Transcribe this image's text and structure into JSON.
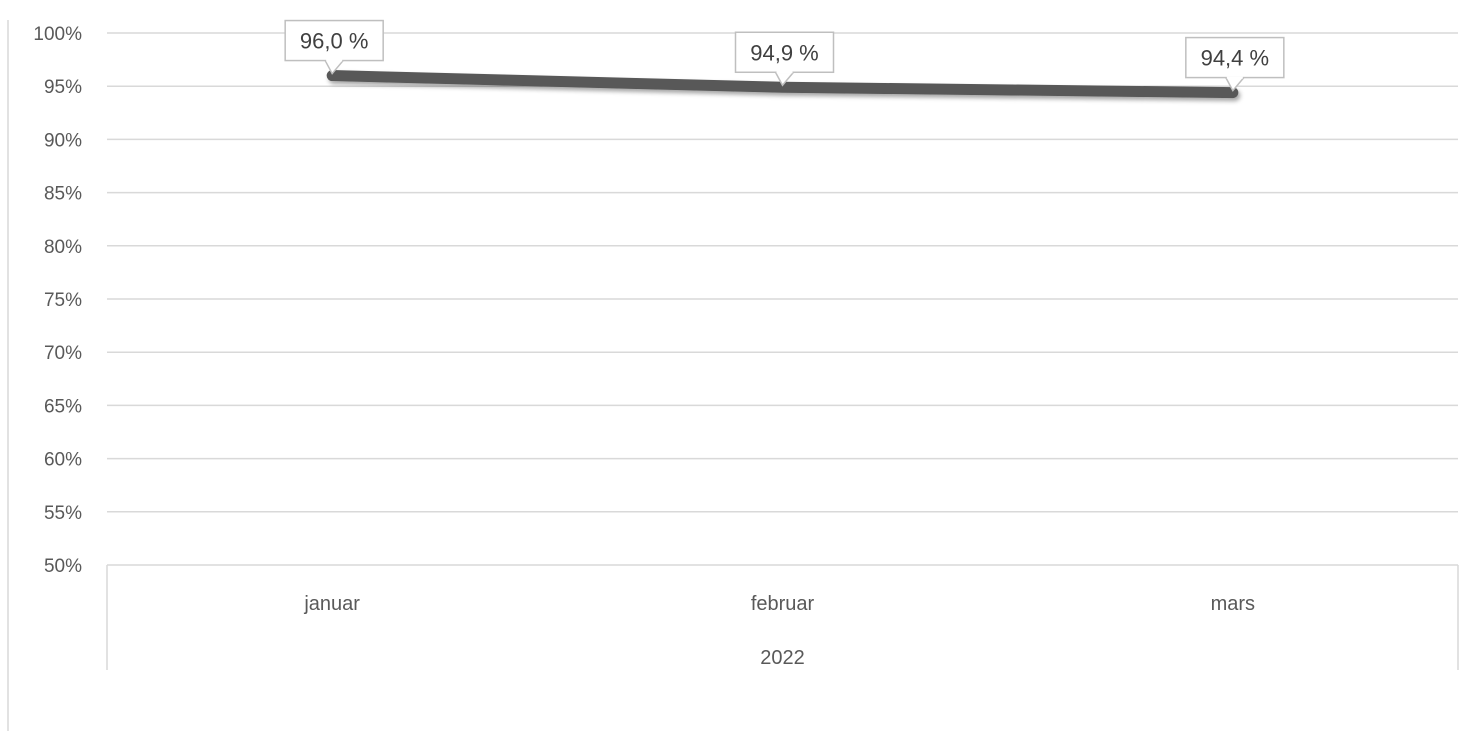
{
  "chart_data": {
    "type": "line",
    "categories": [
      "januar",
      "februar",
      "mars"
    ],
    "category_group": "2022",
    "series": [
      {
        "values": [
          96.0,
          94.9,
          94.4
        ],
        "labels": [
          "96,0 %",
          "94,9 %",
          "94,4 %"
        ],
        "color": "#595959"
      }
    ],
    "ylim": [
      50,
      100
    ],
    "yticks": [
      50,
      55,
      60,
      65,
      70,
      75,
      80,
      85,
      90,
      95,
      100
    ],
    "ytick_labels": [
      "50%",
      "55%",
      "60%",
      "65%",
      "70%",
      "75%",
      "80%",
      "85%",
      "90%",
      "95%",
      "100%"
    ],
    "grid": true,
    "legend": "none",
    "gridline_color": "#d9d9d9",
    "axis_color": "#d9d9d9"
  }
}
